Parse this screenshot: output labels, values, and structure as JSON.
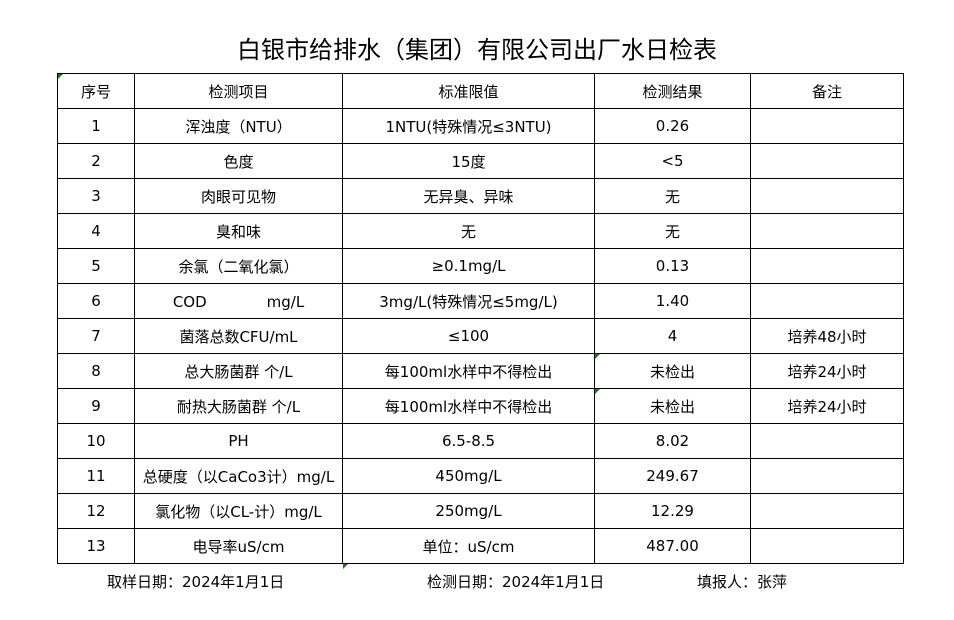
{
  "title": "白银市给排水（集团）有限公司出厂水日检表",
  "table": {
    "headers": [
      "序号",
      "检测项目",
      "标准限值",
      "检测结果",
      "备注"
    ],
    "rows": [
      [
        "1",
        "浑浊度（NTU）",
        "1NTU(特殊情况≤3NTU)",
        "0.26",
        ""
      ],
      [
        "2",
        "色度",
        "15度",
        "<5",
        ""
      ],
      [
        "3",
        "肉眼可见物",
        "无异臭、异味",
        "无",
        ""
      ],
      [
        "4",
        "臭和味",
        "无",
        "无",
        ""
      ],
      [
        "5",
        "余氯（二氧化氯）",
        "≥0.1mg/L",
        "0.13",
        ""
      ],
      [
        "6",
        "COD　　　　mg/L",
        "3mg/L(特殊情况≤5mg/L)",
        "1.40",
        ""
      ],
      [
        "7",
        "菌落总数CFU/mL",
        "≤100",
        "4",
        "培养48小时"
      ],
      [
        "8",
        "总大肠菌群 个/L",
        "每100ml水样中不得检出",
        "未检出",
        "培养24小时"
      ],
      [
        "9",
        "耐热大肠菌群 个/L",
        "每100ml水样中不得检出",
        "未检出",
        "培养24小时"
      ],
      [
        "10",
        "PH",
        "6.5-8.5",
        "8.02",
        ""
      ],
      [
        "11",
        "总硬度（以CaCo3计）mg/L",
        "450mg/L",
        "249.67",
        ""
      ],
      [
        "12",
        "氯化物（以CL-计）mg/L",
        "250mg/L",
        "12.29",
        ""
      ],
      [
        "13",
        "电导率uS/cm",
        "单位：uS/cm",
        "487.00",
        ""
      ]
    ]
  },
  "footer": {
    "sampling_date": "取样日期：2024年1月1日",
    "test_date": "检测日期：2024年1月1日",
    "reporter": "填报人：张萍"
  },
  "colors": {
    "border": "#000000",
    "cell_marker": "#1f7a1f"
  }
}
